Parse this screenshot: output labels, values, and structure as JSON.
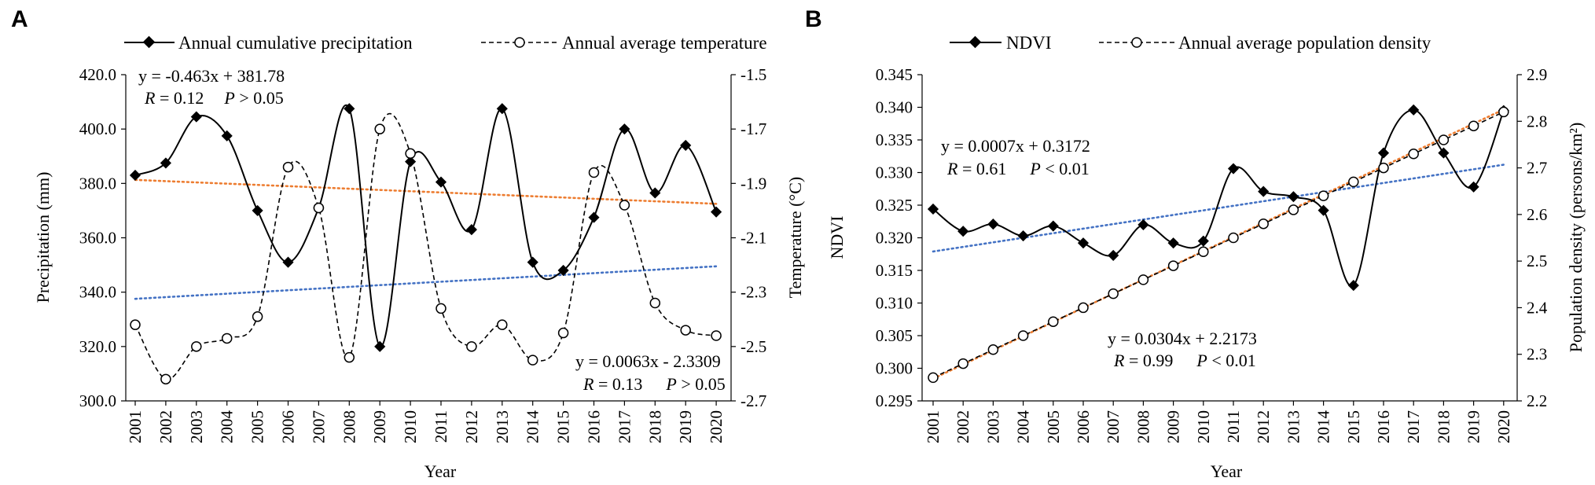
{
  "chart_data": [
    {
      "panel": "A",
      "type": "line",
      "x": [
        2001,
        2002,
        2003,
        2004,
        2005,
        2006,
        2007,
        2008,
        2009,
        2010,
        2011,
        2012,
        2013,
        2014,
        2015,
        2016,
        2017,
        2018,
        2019,
        2020
      ],
      "xlabel": "Year",
      "ylabel": "Precipitation (mm)",
      "y2label": "Temperature (°C)",
      "ylim": [
        300,
        420
      ],
      "yticks": [
        "300.0",
        "320.0",
        "340.0",
        "360.0",
        "380.0",
        "400.0",
        "420.0"
      ],
      "y2lim": [
        -2.7,
        -1.5
      ],
      "y2ticks": [
        "-2.7",
        "-2.5",
        "-2.3",
        "-2.1",
        "-1.9",
        "-1.7",
        "-1.5"
      ],
      "series": [
        {
          "name": "Annual cumulative precipitation",
          "axis": "left",
          "marker": "filled-diamond",
          "style": "solid",
          "values": [
            383.0,
            387.5,
            404.5,
            397.5,
            370.0,
            351.0,
            371.0,
            407.5,
            320.0,
            388.0,
            380.5,
            363.0,
            407.5,
            351.0,
            348.0,
            367.5,
            400.0,
            376.5,
            394.0,
            369.5
          ]
        },
        {
          "name": "Annual average temperature",
          "axis": "right",
          "marker": "open-circle",
          "style": "dashed",
          "values": [
            -2.42,
            -2.62,
            -2.5,
            -2.47,
            -2.39,
            -1.84,
            -1.99,
            -2.54,
            -1.7,
            -1.79,
            -2.36,
            -2.5,
            -2.42,
            -2.55,
            -2.45,
            -1.86,
            -1.98,
            -2.34,
            -2.44,
            -2.46
          ]
        }
      ],
      "trendlines": [
        {
          "axis": "left",
          "color": "#ed7d31",
          "start": 381.3,
          "end": 372.5
        },
        {
          "axis": "right",
          "color": "#4472c4",
          "start": -2.3246,
          "end": -2.2049
        }
      ],
      "annotations": [
        {
          "id": "precip-eq",
          "line1": "y = -0.463x + 381.78",
          "R": "0.12",
          "P": "0.05",
          "cmp": ">"
        },
        {
          "id": "temp-eq",
          "line1": "y = 0.0063x - 2.3309",
          "R": "0.13",
          "P": "0.05",
          "cmp": ">"
        }
      ]
    },
    {
      "panel": "B",
      "type": "line",
      "x": [
        2001,
        2002,
        2003,
        2004,
        2005,
        2006,
        2007,
        2008,
        2009,
        2010,
        2011,
        2012,
        2013,
        2014,
        2015,
        2016,
        2017,
        2018,
        2019,
        2020
      ],
      "xlabel": "Year",
      "ylabel": "NDVI",
      "y2label": "Population density (persons/km²)",
      "ylim": [
        0.295,
        0.345
      ],
      "yticks": [
        "0.295",
        "0.300",
        "0.305",
        "0.310",
        "0.315",
        "0.320",
        "0.325",
        "0.330",
        "0.335",
        "0.340",
        "0.345"
      ],
      "y2lim": [
        2.2,
        2.9
      ],
      "y2ticks": [
        "2.2",
        "2.3",
        "2.4",
        "2.5",
        "2.6",
        "2.7",
        "2.8",
        "2.9"
      ],
      "series": [
        {
          "name": "NDVI",
          "axis": "left",
          "marker": "filled-diamond",
          "style": "solid",
          "values": [
            0.3244,
            0.321,
            0.3221,
            0.3203,
            0.3218,
            0.3192,
            0.3173,
            0.322,
            0.3192,
            0.3195,
            0.3306,
            0.3271,
            0.3263,
            0.3242,
            0.3127,
            0.333,
            0.3396,
            0.333,
            0.3278,
            0.3395
          ]
        },
        {
          "name": "Annual average population density",
          "axis": "right",
          "marker": "open-circle",
          "style": "dashed",
          "values": [
            2.25,
            2.28,
            2.31,
            2.34,
            2.37,
            2.4,
            2.43,
            2.46,
            2.49,
            2.52,
            2.55,
            2.58,
            2.61,
            2.64,
            2.67,
            2.7,
            2.73,
            2.76,
            2.79,
            2.82
          ]
        }
      ],
      "trendlines": [
        {
          "axis": "left",
          "color": "#4472c4",
          "start": 0.3179,
          "end": 0.3312
        },
        {
          "axis": "right",
          "color": "#ed7d31",
          "start": 2.2477,
          "end": 2.8253
        }
      ],
      "annotations": [
        {
          "id": "ndvi-eq",
          "line1": "y = 0.0007x + 0.3172",
          "R": "0.61",
          "P": "0.01",
          "cmp": "<"
        },
        {
          "id": "pop-eq",
          "line1": "y = 0.0304x + 2.2173",
          "R": "0.99",
          "P": "0.01",
          "cmp": "<"
        }
      ]
    }
  ],
  "panels": {
    "a": {
      "label": "A",
      "legend": [
        "Annual cumulative precipitation",
        "Annual average temperature"
      ],
      "xlabel": "Year",
      "ylabel": "Precipitation (mm)",
      "y2label": "Temperature (°C)",
      "eq1": {
        "line": "y = -0.463x + 381.78",
        "r_label": "R",
        "r_text": " = 0.12",
        "p_label": "P",
        "p_text": " > 0.05"
      },
      "eq2": {
        "line": "y = 0.0063x - 2.3309",
        "r_label": "R",
        "r_text": " = 0.13",
        "p_label": "P",
        "p_text": " > 0.05"
      }
    },
    "b": {
      "label": "B",
      "legend": [
        "NDVI",
        "Annual average population density"
      ],
      "xlabel": "Year",
      "ylabel": "NDVI",
      "y2label": "Population density (persons/km²)",
      "eq1": {
        "line": "y = 0.0007x + 0.3172",
        "r_label": "R",
        "r_text": " = 0.61",
        "p_label": "P",
        "p_text": " < 0.01"
      },
      "eq2": {
        "line": "y = 0.0304x + 2.2173",
        "r_label": "R",
        "r_text": " = 0.99",
        "p_label": "P",
        "p_text": " < 0.01"
      }
    }
  }
}
